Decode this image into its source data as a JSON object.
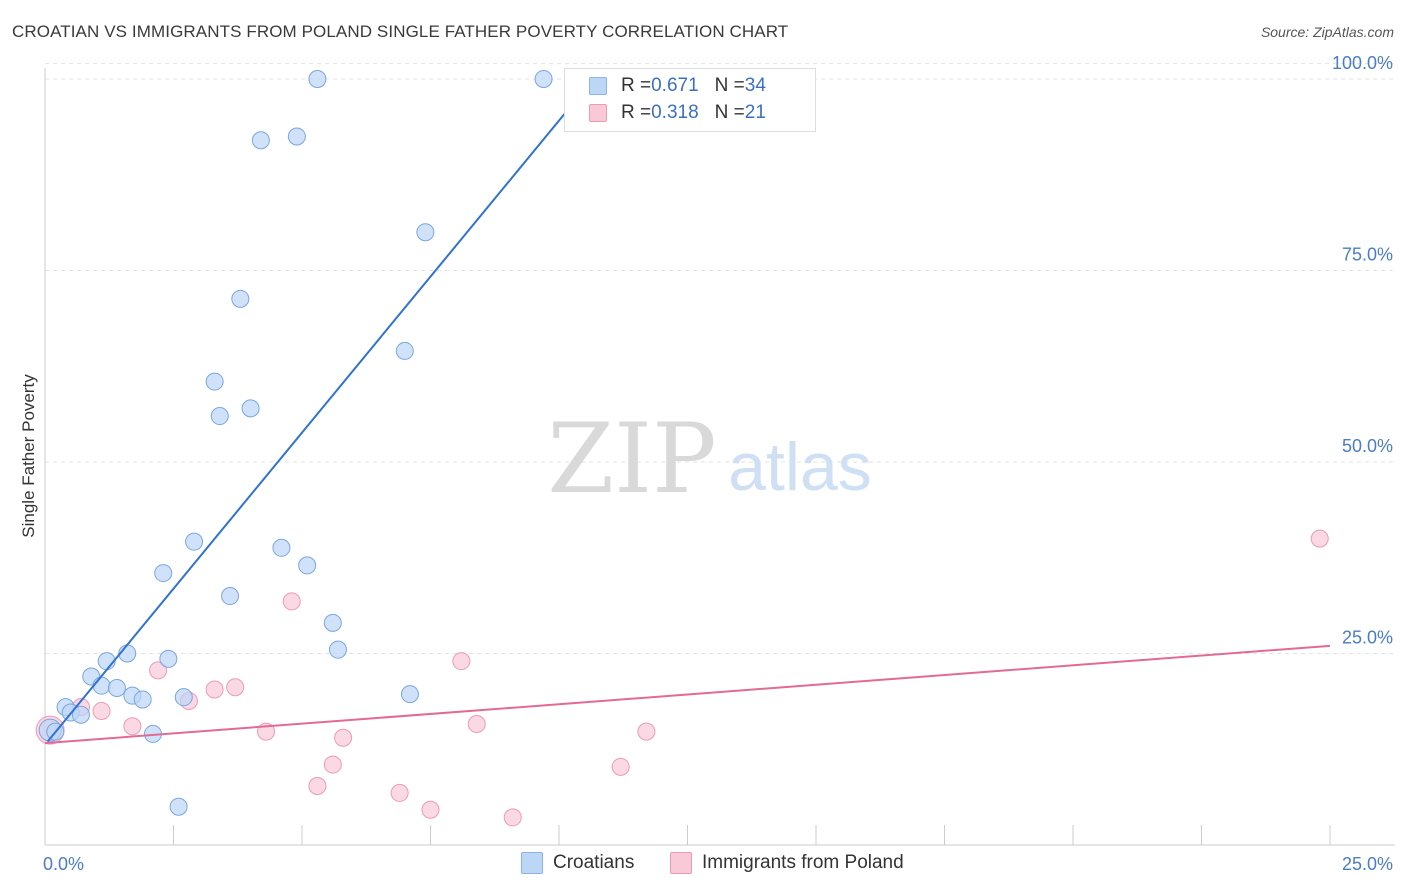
{
  "title": "CROATIAN VS IMMIGRANTS FROM POLAND SINGLE FATHER POVERTY CORRELATION CHART",
  "source": "Source: ZipAtlas.com",
  "watermark": {
    "zip": "ZIP",
    "atlas": "atlas"
  },
  "legend": {
    "series1": {
      "r_label": "R = ",
      "r_value": "0.671",
      "n_label": "N = ",
      "n_value": "34"
    },
    "series2": {
      "r_label": "R = ",
      "r_value": "0.318",
      "n_label": "N = ",
      "n_value": "21"
    }
  },
  "colors": {
    "blue_fill": "#bcd6f6",
    "blue_stroke": "#7aa6e0",
    "blue_line": "#2f72d0",
    "pink_fill": "#f9c9d8",
    "pink_stroke": "#ee9ab5",
    "pink_line": "#e26a96",
    "tick_label": "#4a7cc7",
    "grid": "#e3e3e3"
  },
  "chart_data": {
    "type": "scatter",
    "title": "CROATIAN VS IMMIGRANTS FROM POLAND SINGLE FATHER POVERTY CORRELATION CHART",
    "xlabel": "",
    "ylabel": "Single Father Poverty",
    "xlim": [
      0,
      25
    ],
    "ylim": [
      0,
      102
    ],
    "x_tick_labels": [
      "0.0%",
      "25.0%"
    ],
    "y_ticks": [
      25,
      50,
      75,
      100
    ],
    "y_tick_labels": [
      "25.0%",
      "50.0%",
      "75.0%",
      "100.0%"
    ],
    "grid": true,
    "legend_position": "bottom",
    "series": [
      {
        "name": "Croatians",
        "r": 0.671,
        "n": 34,
        "color": "#bcd6f6",
        "points": [
          [
            0.1,
            15.0
          ],
          [
            0.2,
            14.8
          ],
          [
            0.4,
            18.0
          ],
          [
            0.5,
            17.3
          ],
          [
            0.7,
            17.0
          ],
          [
            0.9,
            22.0
          ],
          [
            1.1,
            20.8
          ],
          [
            1.2,
            24.0
          ],
          [
            1.4,
            20.5
          ],
          [
            1.6,
            25.0
          ],
          [
            1.7,
            19.5
          ],
          [
            1.9,
            19.0
          ],
          [
            2.1,
            14.5
          ],
          [
            2.3,
            35.5
          ],
          [
            2.4,
            24.3
          ],
          [
            2.6,
            5.0
          ],
          [
            2.7,
            19.3
          ],
          [
            2.9,
            39.6
          ],
          [
            3.3,
            60.5
          ],
          [
            3.4,
            56.0
          ],
          [
            3.6,
            32.5
          ],
          [
            3.8,
            71.3
          ],
          [
            4.0,
            57.0
          ],
          [
            4.2,
            92.0
          ],
          [
            4.6,
            38.8
          ],
          [
            4.9,
            92.5
          ],
          [
            5.1,
            36.5
          ],
          [
            5.3,
            100.0
          ],
          [
            5.6,
            29.0
          ],
          [
            5.7,
            25.5
          ],
          [
            7.0,
            64.5
          ],
          [
            7.1,
            19.7
          ],
          [
            7.4,
            80.0
          ],
          [
            9.7,
            100.0
          ]
        ],
        "trend": {
          "x": [
            0.05,
            10.2
          ],
          "y": [
            13.5,
            96.2
          ]
        }
      },
      {
        "name": "Immigrants from Poland",
        "r": 0.318,
        "n": 21,
        "color": "#f9c9d8",
        "points": [
          [
            0.1,
            15.0
          ],
          [
            0.7,
            18.0
          ],
          [
            1.1,
            17.5
          ],
          [
            1.7,
            15.5
          ],
          [
            2.2,
            22.8
          ],
          [
            2.8,
            18.8
          ],
          [
            3.3,
            20.3
          ],
          [
            3.7,
            20.6
          ],
          [
            4.3,
            14.8
          ],
          [
            4.8,
            31.8
          ],
          [
            5.3,
            7.7
          ],
          [
            5.6,
            10.5
          ],
          [
            5.8,
            14.0
          ],
          [
            6.9,
            6.8
          ],
          [
            7.5,
            4.6
          ],
          [
            8.1,
            24.0
          ],
          [
            8.4,
            15.8
          ],
          [
            9.1,
            3.6
          ],
          [
            11.2,
            10.2
          ],
          [
            11.7,
            14.8
          ],
          [
            24.8,
            40.0
          ]
        ],
        "trend": {
          "x": [
            0.0,
            25.0
          ],
          "y": [
            13.3,
            26.0
          ]
        }
      }
    ]
  },
  "bottom_legend": {
    "item1": "Croatians",
    "item2": "Immigrants from Poland"
  }
}
